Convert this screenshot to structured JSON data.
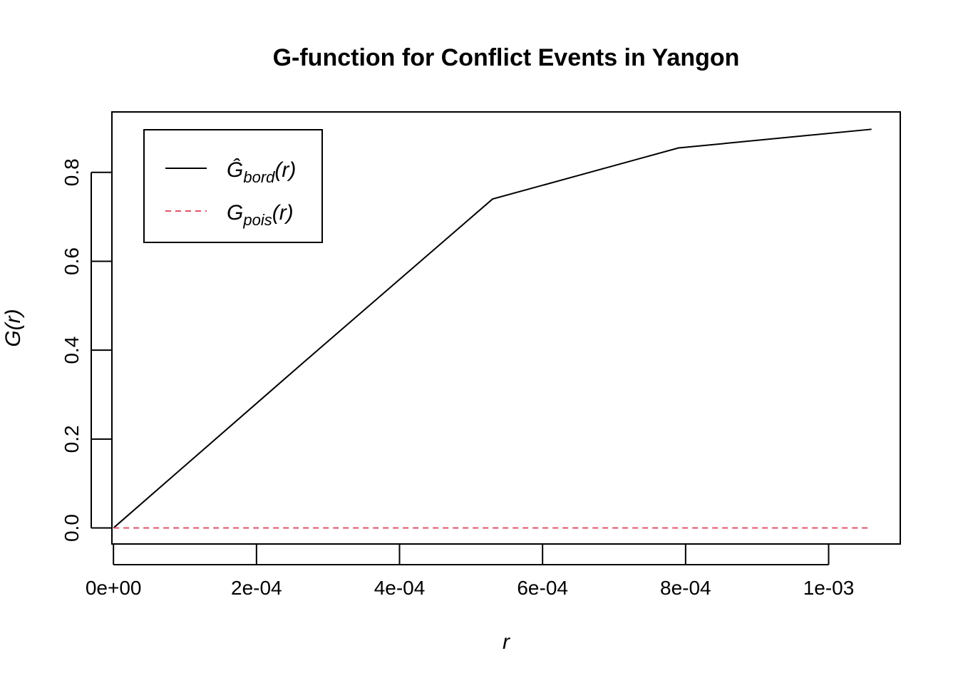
{
  "chart_data": {
    "type": "line",
    "title": "G-function for Conflict Events in Yangon",
    "xlabel": "r",
    "ylabel": "G(r)",
    "xlim": [
      -2.16e-06,
      0.00110016
    ],
    "ylim": [
      -0.036,
      0.936
    ],
    "x_ticks": [
      0,
      0.0002,
      0.0004,
      0.0006,
      0.0008,
      0.001
    ],
    "x_tick_labels": [
      "0e+00",
      "2e-04",
      "4e-04",
      "6e-04",
      "8e-04",
      "1e-03"
    ],
    "y_ticks": [
      0,
      0.2,
      0.4,
      0.6,
      0.8
    ],
    "y_tick_labels": [
      "0.0",
      "0.2",
      "0.4",
      "0.6",
      "0.8"
    ],
    "grid": false,
    "legend_position": "top-left",
    "series": [
      {
        "name": "Ĝbord(r)",
        "label_main": "Ĝ",
        "label_sub": "bord",
        "label_arg": "(r)",
        "color": "#000000",
        "dash": "solid",
        "x": [
          0,
          0.000264,
          0.00053,
          0.00079,
          0.00106
        ],
        "y": [
          0,
          0.37,
          0.74,
          0.855,
          0.897
        ]
      },
      {
        "name": "Gpois(r)",
        "label_main": "G",
        "label_sub": "pois",
        "label_arg": "(r)",
        "color": "#DF536B",
        "dash": "dashed",
        "x": [
          0,
          0.00106
        ],
        "y": [
          0,
          0
        ]
      }
    ]
  }
}
